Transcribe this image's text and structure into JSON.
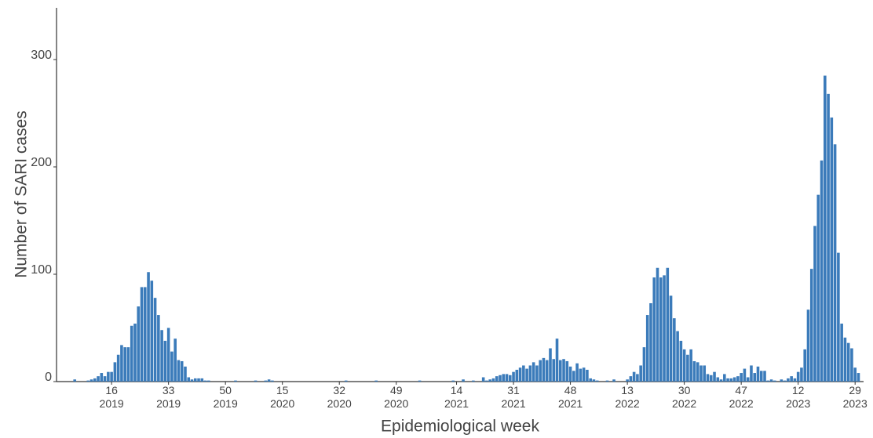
{
  "chart_data": {
    "type": "bar",
    "x_label": "Epidemiological week",
    "y_label": "Number of SARI cases",
    "color": "#3b7bba",
    "ylim": [
      0,
      350
    ],
    "yticks": [
      0,
      100,
      200,
      300
    ],
    "categories": [
      null,
      null,
      null,
      null,
      null,
      null,
      null,
      null,
      null,
      null,
      null,
      null,
      null,
      null,
      null,
      "16\n2019",
      null,
      null,
      null,
      null,
      null,
      null,
      null,
      null,
      null,
      null,
      null,
      null,
      null,
      null,
      null,
      null,
      "33\n2019",
      null,
      null,
      null,
      null,
      null,
      null,
      null,
      null,
      null,
      null,
      null,
      null,
      null,
      null,
      null,
      null,
      "50\n2019",
      null,
      null,
      null,
      null,
      null,
      null,
      null,
      null,
      null,
      null,
      null,
      null,
      null,
      null,
      null,
      null,
      "15\n2020",
      null,
      null,
      null,
      null,
      null,
      null,
      null,
      null,
      null,
      null,
      null,
      null,
      null,
      null,
      null,
      null,
      "32\n2020",
      null,
      null,
      null,
      null,
      null,
      null,
      null,
      null,
      null,
      null,
      null,
      null,
      null,
      null,
      null,
      null,
      "49\n2020",
      null,
      null,
      null,
      null,
      null,
      null,
      null,
      null,
      null,
      null,
      null,
      null,
      null,
      null,
      null,
      null,
      null,
      "14\n2021",
      null,
      null,
      null,
      null,
      null,
      null,
      null,
      null,
      null,
      null,
      null,
      null,
      null,
      null,
      null,
      null,
      "31\n2021",
      null,
      null,
      null,
      null,
      null,
      null,
      null,
      null,
      null,
      null,
      null,
      null,
      null,
      null,
      null,
      null,
      "48\n2021",
      null,
      null,
      null,
      null,
      null,
      null,
      null,
      null,
      null,
      null,
      null,
      null,
      null,
      null,
      null,
      null,
      "13\n2022",
      null,
      null,
      null,
      null,
      null,
      null,
      null,
      null,
      null,
      null,
      null,
      null,
      null,
      null,
      null,
      null,
      "30\n2022",
      null,
      null,
      null,
      null,
      null,
      null,
      null,
      null,
      null,
      null,
      null,
      null,
      null,
      null,
      null,
      null,
      "47\n2022",
      null,
      null,
      null,
      null,
      null,
      null,
      null,
      null,
      null,
      null,
      null,
      null,
      null,
      null,
      null,
      null,
      "12\n2023",
      null,
      null,
      null,
      null,
      null,
      null,
      null,
      null,
      null,
      null,
      null,
      null,
      null,
      null,
      null,
      null,
      "29\n2023",
      null
    ],
    "values": [
      0,
      0,
      0,
      0,
      2,
      0,
      0,
      0,
      1,
      2,
      3,
      5,
      8,
      5,
      9,
      9,
      18,
      25,
      34,
      32,
      32,
      52,
      54,
      70,
      88,
      88,
      102,
      94,
      78,
      62,
      48,
      38,
      50,
      28,
      40,
      20,
      19,
      14,
      4,
      2,
      3,
      3,
      3,
      1,
      1,
      0,
      0,
      0,
      0,
      0,
      0,
      0,
      1,
      0,
      0,
      0,
      0,
      0,
      1,
      0,
      0,
      1,
      2,
      1,
      0,
      0,
      0,
      0,
      0,
      0,
      0,
      0,
      0,
      0,
      0,
      0,
      0,
      0,
      0,
      0,
      0,
      0,
      0,
      0,
      0,
      1,
      0,
      0,
      0,
      0,
      0,
      0,
      0,
      0,
      1,
      0,
      0,
      0,
      0,
      0,
      0,
      0,
      0,
      0,
      0,
      0,
      0,
      1,
      0,
      0,
      0,
      0,
      0,
      0,
      0,
      0,
      0,
      1,
      0,
      0,
      2,
      0,
      0,
      1,
      0,
      0,
      4,
      1,
      2,
      3,
      5,
      6,
      7,
      7,
      6,
      9,
      11,
      13,
      15,
      12,
      15,
      18,
      15,
      20,
      22,
      20,
      31,
      21,
      40,
      20,
      21,
      19,
      14,
      10,
      17,
      12,
      13,
      11,
      3,
      2,
      1,
      0,
      0,
      1,
      0,
      2,
      0,
      0,
      0,
      2,
      5,
      9,
      7,
      15,
      32,
      62,
      73,
      97,
      106,
      97,
      99,
      106,
      80,
      59,
      47,
      38,
      30,
      25,
      30,
      19,
      18,
      15,
      15,
      7,
      6,
      9,
      4,
      2,
      7,
      3,
      3,
      4,
      5,
      8,
      12,
      4,
      15,
      8,
      14,
      10,
      10,
      1,
      2,
      1,
      0,
      2,
      1,
      3,
      5,
      3,
      9,
      13,
      30,
      67,
      105,
      145,
      174,
      206,
      285,
      268,
      246,
      221,
      120,
      54,
      41,
      36,
      31,
      13,
      8
    ]
  }
}
